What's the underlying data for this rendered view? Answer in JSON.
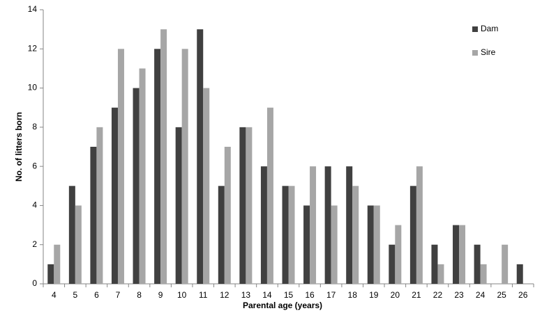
{
  "chart_data": {
    "type": "bar",
    "x_label": "Parental age (years)",
    "y_label": "No. of litters born",
    "categories": [
      "4",
      "5",
      "6",
      "7",
      "8",
      "9",
      "10",
      "11",
      "12",
      "13",
      "14",
      "15",
      "16",
      "17",
      "18",
      "19",
      "20",
      "21",
      "22",
      "23",
      "24",
      "25",
      "26"
    ],
    "series": [
      {
        "name": "Dam",
        "color": "#404040",
        "values": [
          1,
          5,
          7,
          9,
          10,
          12,
          8,
          13,
          5,
          8,
          6,
          5,
          4,
          6,
          6,
          4,
          2,
          5,
          2,
          3,
          2,
          0,
          1
        ]
      },
      {
        "name": "Sire",
        "color": "#a6a6a6",
        "values": [
          2,
          4,
          8,
          12,
          11,
          13,
          12,
          10,
          7,
          8,
          9,
          5,
          6,
          4,
          5,
          4,
          3,
          6,
          1,
          3,
          1,
          2,
          0
        ]
      }
    ],
    "ylim": [
      0,
      14
    ],
    "yticks": [
      0,
      2,
      4,
      6,
      8,
      10,
      12,
      14
    ],
    "legend": "top-right",
    "grid": false
  }
}
